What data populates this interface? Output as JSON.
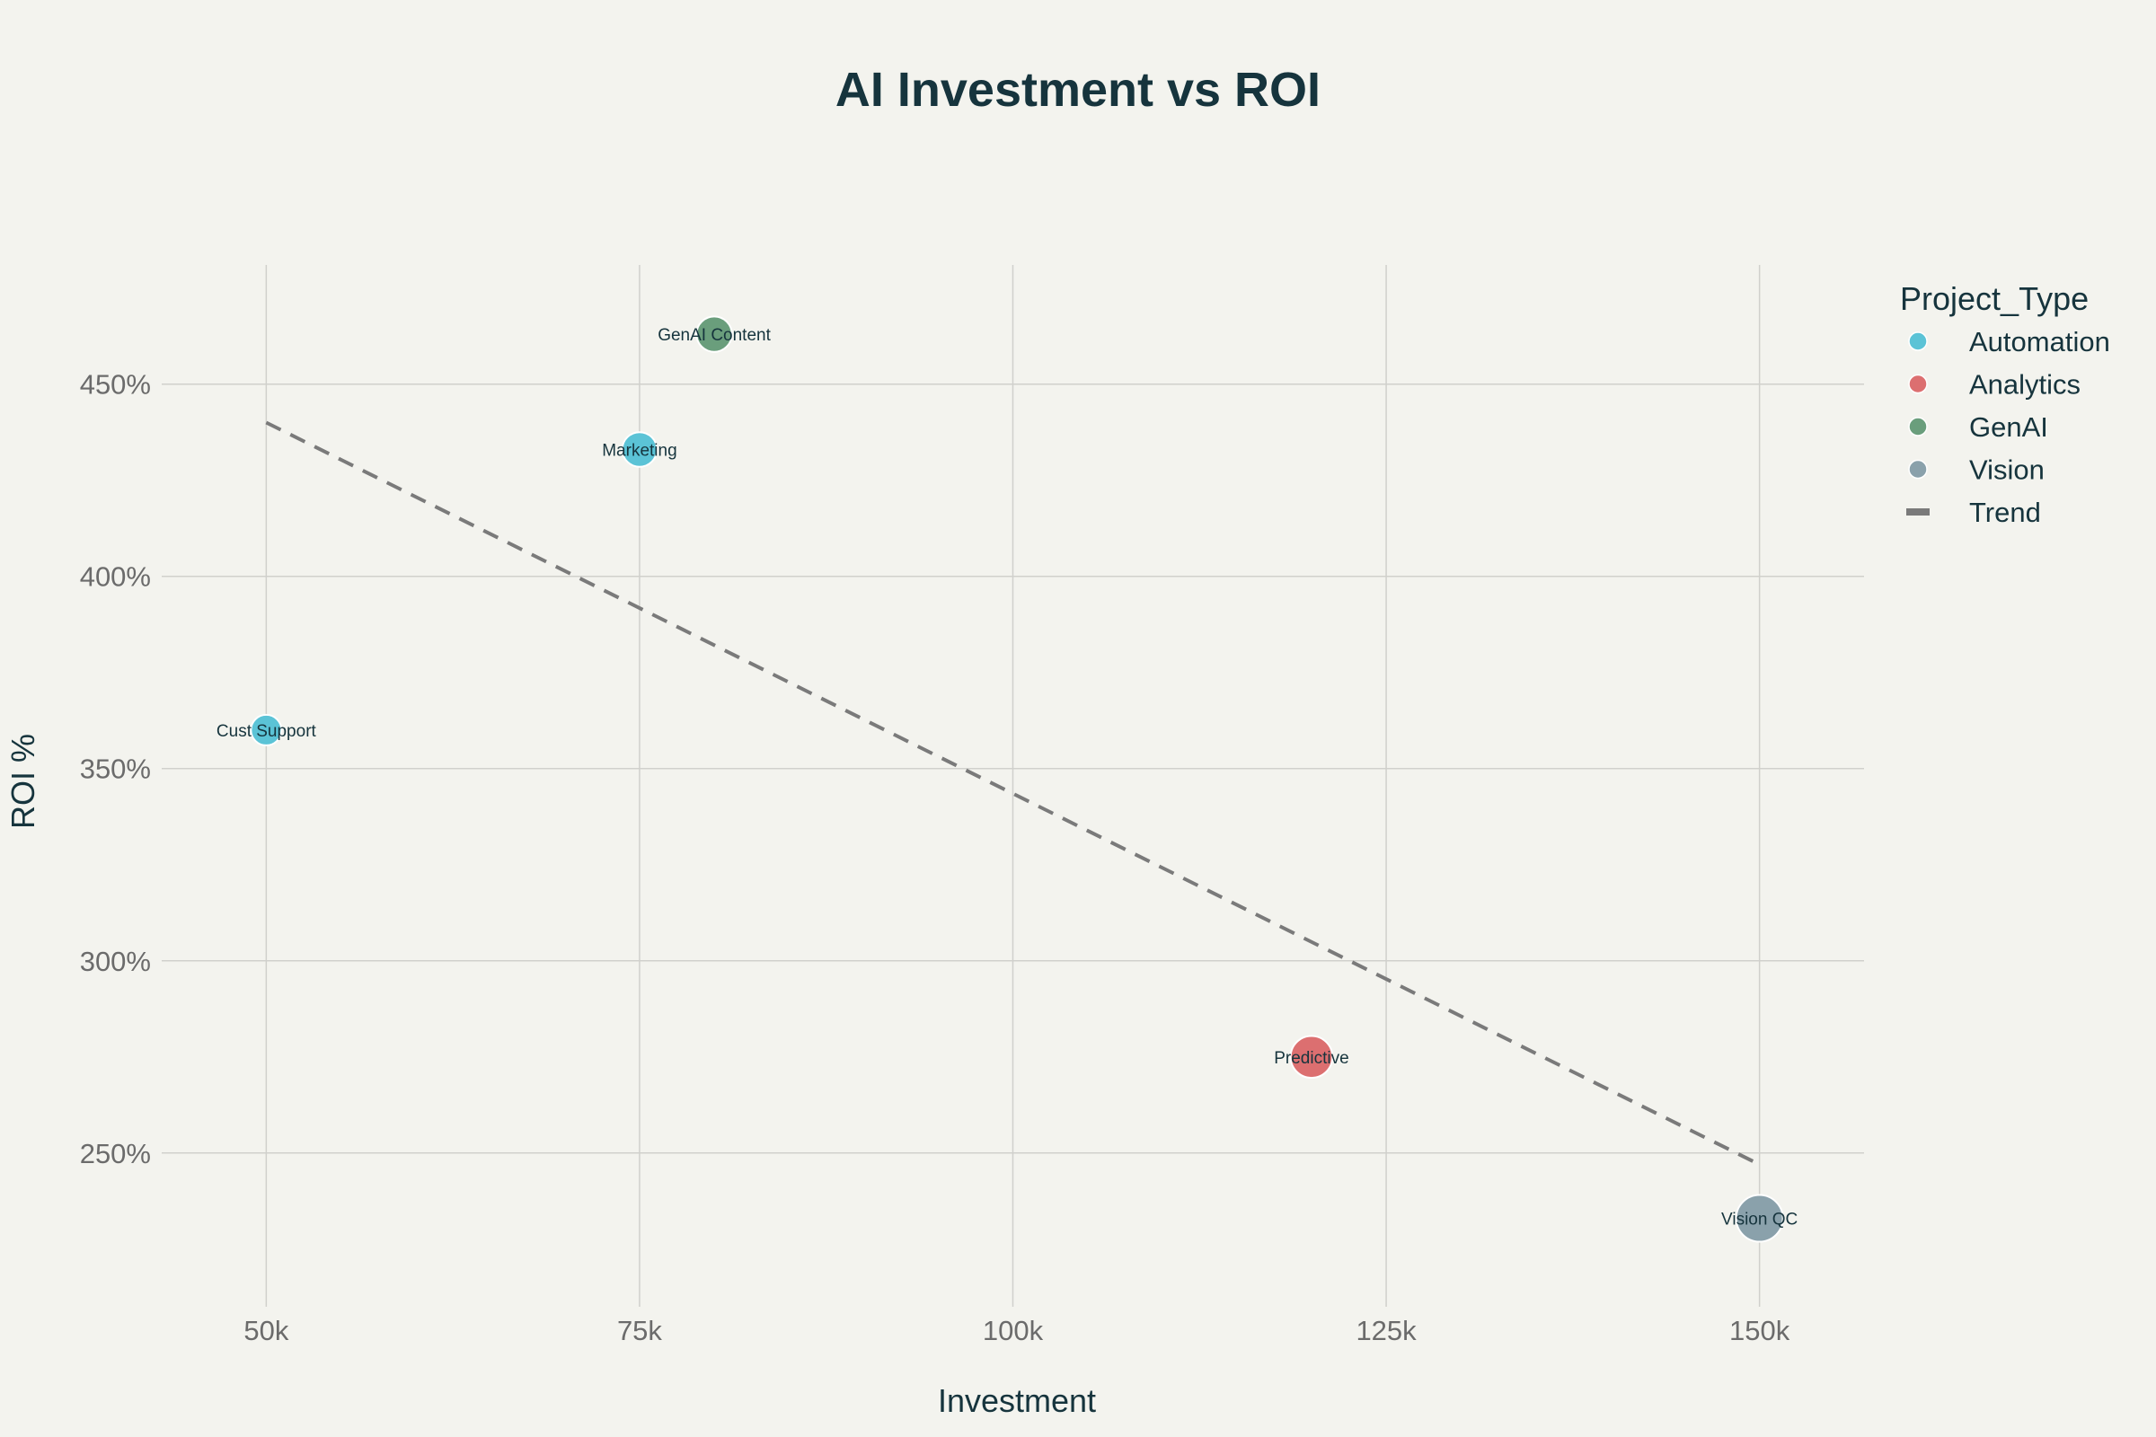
{
  "chart_data": {
    "type": "scatter",
    "title": "AI Investment vs ROI",
    "xlabel": "Investment",
    "ylabel": "ROI %",
    "xlim": [
      43000,
      157000
    ],
    "ylim": [
      210,
      481
    ],
    "x_ticks": [
      50000,
      75000,
      100000,
      125000,
      150000
    ],
    "x_tick_labels": [
      "50k",
      "75k",
      "100k",
      "125k",
      "150k"
    ],
    "y_ticks": [
      250,
      300,
      350,
      400,
      450
    ],
    "y_tick_labels": [
      "250%",
      "300%",
      "350%",
      "400%",
      "450%"
    ],
    "grid": true,
    "legend_title": "Project_Type",
    "legend_position": "right",
    "colors": {
      "Automation": "#5bc3d6",
      "Analytics": "#dc6f70",
      "GenAI": "#6a9e7c",
      "Vision": "#8aa1ab",
      "Trend": "#7a7a7a"
    },
    "legend": [
      {
        "name": "Automation",
        "kind": "marker"
      },
      {
        "name": "Analytics",
        "kind": "marker"
      },
      {
        "name": "GenAI",
        "kind": "marker"
      },
      {
        "name": "Vision",
        "kind": "marker"
      },
      {
        "name": "Trend",
        "kind": "line"
      }
    ],
    "points": [
      {
        "label": "Cust Support",
        "type": "Automation",
        "x": 50000,
        "y": 360
      },
      {
        "label": "Marketing",
        "type": "Automation",
        "x": 75000,
        "y": 433
      },
      {
        "label": "GenAI Content",
        "type": "GenAI",
        "x": 80000,
        "y": 463
      },
      {
        "label": "Predictive",
        "type": "Analytics",
        "x": 120000,
        "y": 275
      },
      {
        "label": "Vision QC",
        "type": "Vision",
        "x": 150000,
        "y": 233
      }
    ],
    "trend": [
      {
        "x": 50000,
        "y": 440
      },
      {
        "x": 150000,
        "y": 247
      }
    ]
  }
}
